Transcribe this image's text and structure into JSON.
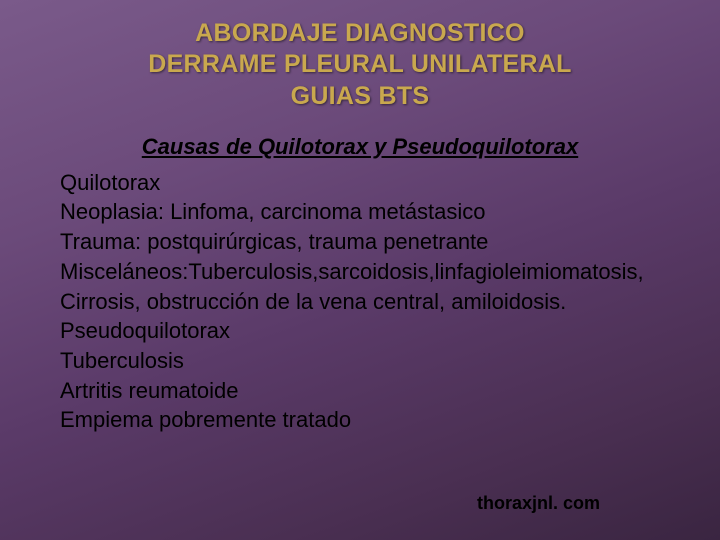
{
  "background": {
    "gradient_colors": [
      "#7a5a8a",
      "#6b4a7a",
      "#5a3a68",
      "#4a2f52",
      "#3a2541"
    ],
    "gradient_angle_deg": 160
  },
  "title": {
    "lines": [
      "ABORDAJE DIAGNOSTICO",
      "DERRAME PLEURAL UNILATERAL",
      "GUIAS BTS"
    ],
    "color": "#c9a84e",
    "fontsize": 25,
    "font_family": "Trebuchet MS",
    "font_weight": "bold"
  },
  "subtitle": {
    "text": "Causas de Quilotorax y Pseudoquilotorax",
    "color": "#000000",
    "fontsize": 22,
    "italic": true,
    "bold": true,
    "underline": true
  },
  "body": {
    "lines": [
      "Quilotorax",
      "Neoplasia:  Linfoma, carcinoma metástasico",
      "Trauma: postquirúrgicas, trauma penetrante",
      "Misceláneos:Tuberculosis,sarcoidosis,linfagioleimiomatosis,",
      "Cirrosis, obstrucción de la vena central, amiloidosis.",
      "Pseudoquilotorax",
      "Tuberculosis",
      "Artritis reumatoide",
      "Empiema pobremente tratado"
    ],
    "color": "#000000",
    "fontsize": 22,
    "line_height": 1.35
  },
  "footer": {
    "text": "thoraxjnl. com",
    "color": "#000000",
    "fontsize": 18,
    "bold": true
  }
}
